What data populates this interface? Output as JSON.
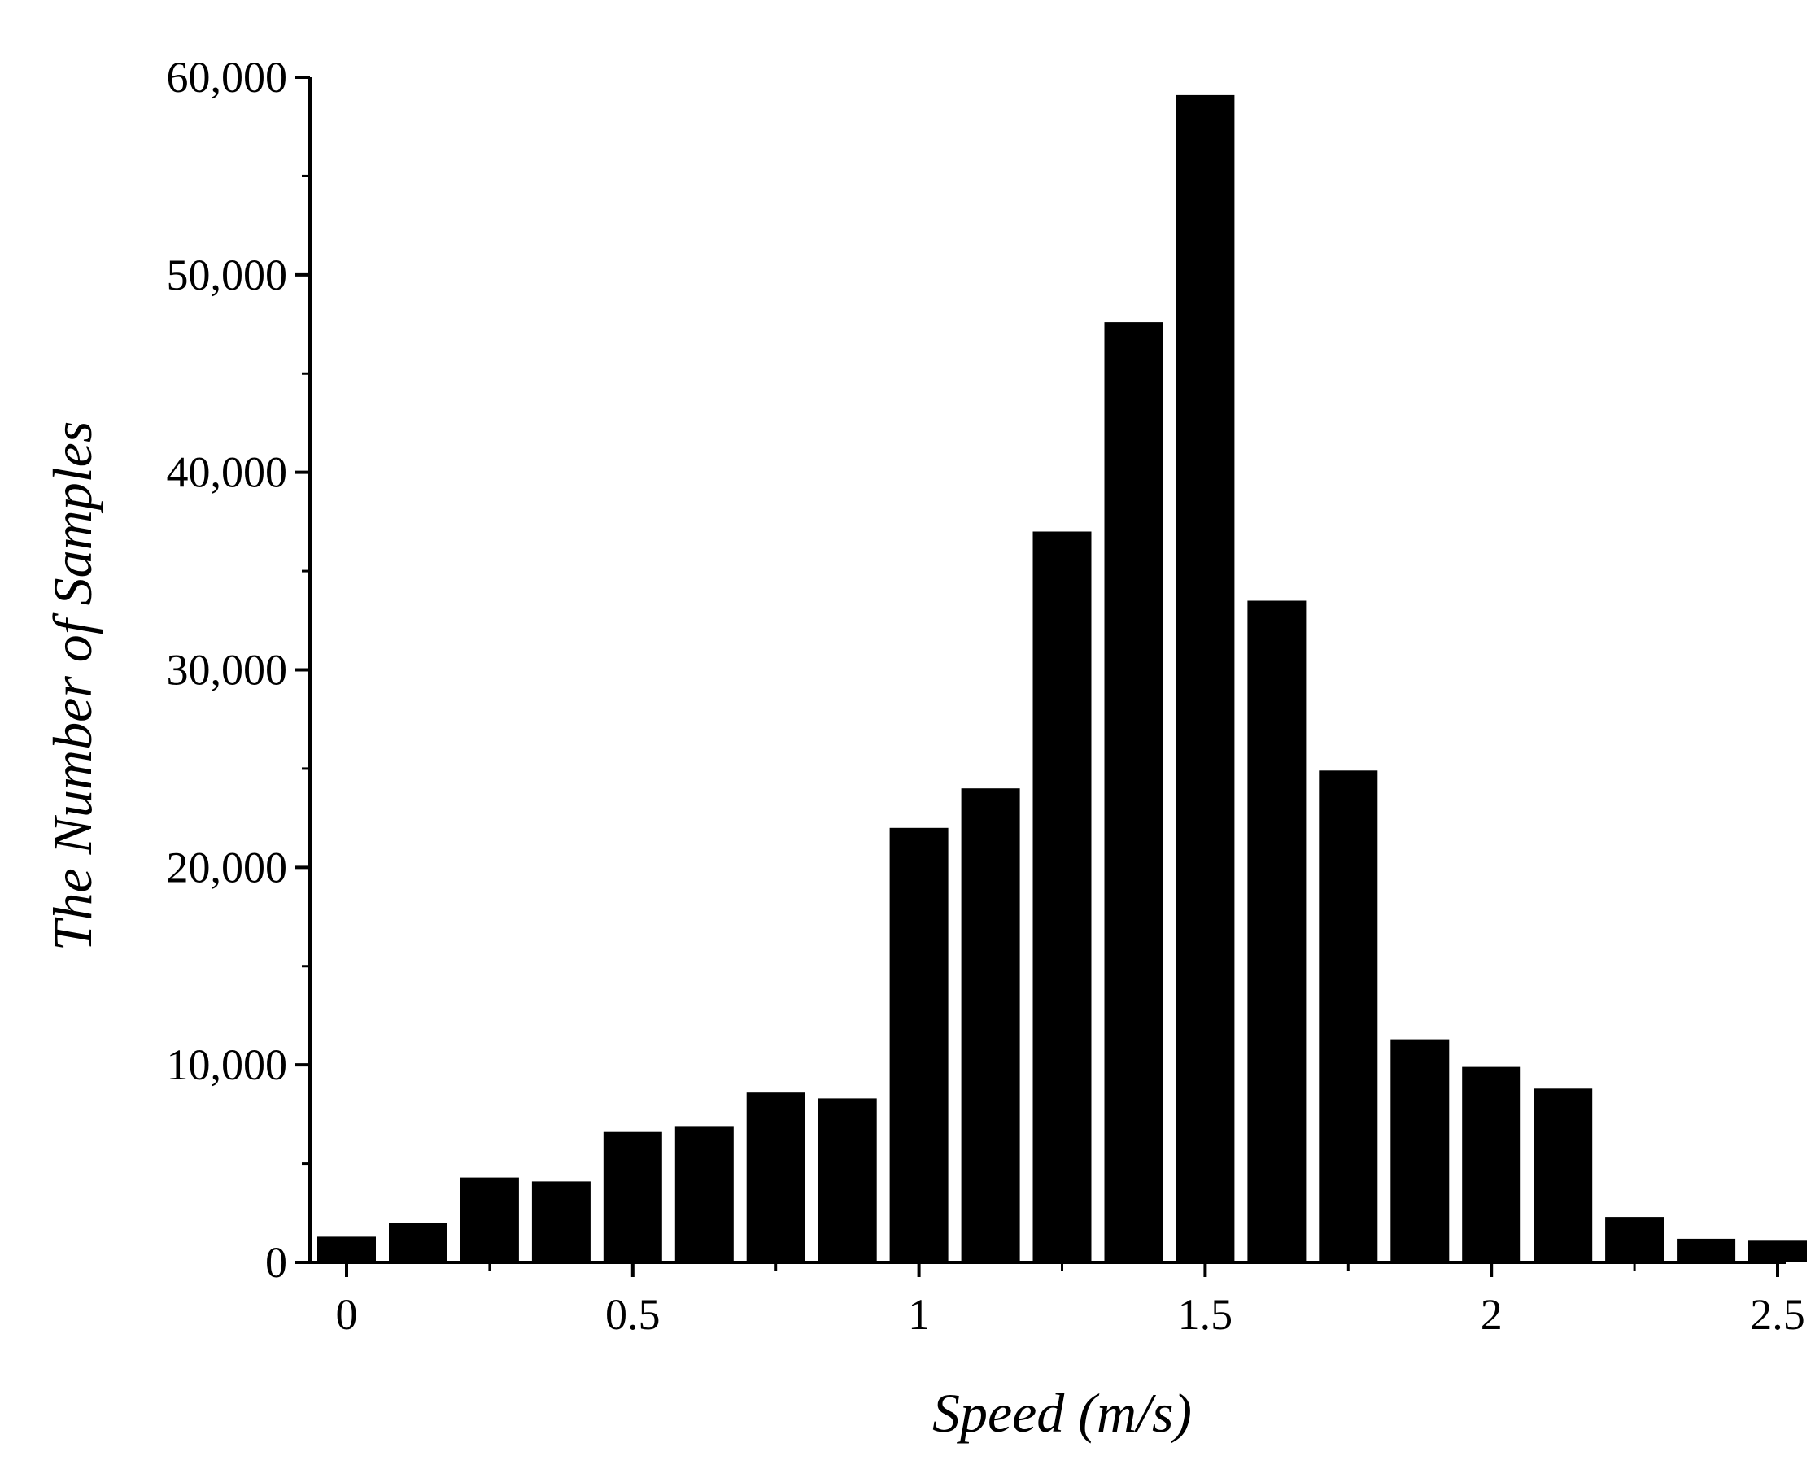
{
  "chart_data": {
    "type": "bar",
    "title": "",
    "xlabel": "Speed (m/s)",
    "ylabel": "The Number of Samples",
    "xlim": [
      -0.05,
      2.52
    ],
    "ylim": [
      0,
      60000
    ],
    "grid": false,
    "bar_color": "#000000",
    "bin_width": 0.125,
    "bins": [
      {
        "x": 0.0,
        "value": 1300
      },
      {
        "x": 0.125,
        "value": 2000
      },
      {
        "x": 0.25,
        "value": 4300
      },
      {
        "x": 0.375,
        "value": 4100
      },
      {
        "x": 0.5,
        "value": 6600
      },
      {
        "x": 0.625,
        "value": 6900
      },
      {
        "x": 0.75,
        "value": 8600
      },
      {
        "x": 0.875,
        "value": 8300
      },
      {
        "x": 1.0,
        "value": 22000
      },
      {
        "x": 1.125,
        "value": 24000
      },
      {
        "x": 1.25,
        "value": 37000
      },
      {
        "x": 1.375,
        "value": 47600
      },
      {
        "x": 1.5,
        "value": 59100
      },
      {
        "x": 1.625,
        "value": 33500
      },
      {
        "x": 1.75,
        "value": 24900
      },
      {
        "x": 1.875,
        "value": 11300
      },
      {
        "x": 2.0,
        "value": 9900
      },
      {
        "x": 2.125,
        "value": 8800
      },
      {
        "x": 2.25,
        "value": 2300
      },
      {
        "x": 2.375,
        "value": 1200
      },
      {
        "x": 2.5,
        "value": 1100
      }
    ],
    "x_ticks": [
      {
        "value": 0,
        "label": "0"
      },
      {
        "value": 0.5,
        "label": "0.5"
      },
      {
        "value": 1,
        "label": "1"
      },
      {
        "value": 1.5,
        "label": "1.5"
      },
      {
        "value": 2,
        "label": "2"
      },
      {
        "value": 2.5,
        "label": "2.5"
      }
    ],
    "x_minor_ticks": [
      0.25,
      0.75,
      1.25,
      1.75,
      2.25
    ],
    "y_ticks": [
      {
        "value": 0,
        "label": "0"
      },
      {
        "value": 10000,
        "label": "10,000"
      },
      {
        "value": 20000,
        "label": "20,000"
      },
      {
        "value": 30000,
        "label": "30,000"
      },
      {
        "value": 40000,
        "label": "40,000"
      },
      {
        "value": 50000,
        "label": "50,000"
      },
      {
        "value": 60000,
        "label": "60,000"
      }
    ],
    "y_minor_ticks": [
      5000,
      15000,
      25000,
      35000,
      45000,
      55000
    ]
  }
}
